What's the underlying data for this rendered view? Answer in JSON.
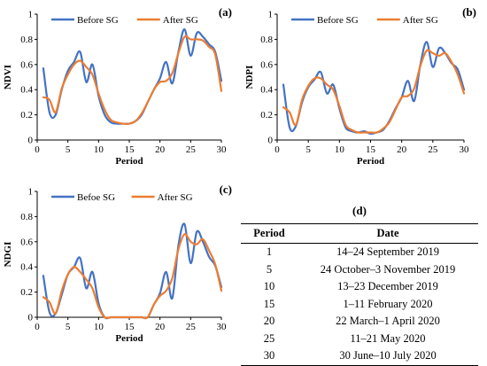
{
  "colors": {
    "before": "#4472C4",
    "after": "#ED7D31"
  },
  "chart_data": [
    {
      "panel": "(a)",
      "type": "line",
      "xlabel": "Period",
      "ylabel": "NDVI",
      "xlim": [
        0,
        30
      ],
      "ylim": [
        0,
        1
      ],
      "xticks": [
        "0",
        "5",
        "10",
        "15",
        "20",
        "25",
        "30"
      ],
      "yticks": [
        "0",
        "0.2",
        "0.4",
        "0.6",
        "0.8",
        "1"
      ],
      "legend_position": "top",
      "x": [
        1,
        2,
        3,
        4,
        5,
        6,
        7,
        8,
        9,
        10,
        11,
        12,
        13,
        14,
        15,
        16,
        17,
        18,
        19,
        20,
        21,
        22,
        23,
        24,
        25,
        26,
        27,
        28,
        29,
        30
      ],
      "series": [
        {
          "name": "Before SG",
          "values": [
            0.57,
            0.22,
            0.2,
            0.4,
            0.55,
            0.62,
            0.7,
            0.46,
            0.6,
            0.35,
            0.2,
            0.14,
            0.13,
            0.13,
            0.13,
            0.15,
            0.2,
            0.3,
            0.4,
            0.49,
            0.62,
            0.45,
            0.7,
            0.88,
            0.67,
            0.85,
            0.82,
            0.76,
            0.7,
            0.47
          ]
        },
        {
          "name": "After SG",
          "values": [
            0.34,
            0.32,
            0.22,
            0.41,
            0.52,
            0.6,
            0.63,
            0.58,
            0.52,
            0.37,
            0.24,
            0.16,
            0.14,
            0.13,
            0.13,
            0.15,
            0.21,
            0.3,
            0.4,
            0.46,
            0.47,
            0.53,
            0.69,
            0.82,
            0.8,
            0.8,
            0.79,
            0.74,
            0.68,
            0.39
          ]
        }
      ]
    },
    {
      "panel": "(b)",
      "type": "line",
      "xlabel": "Period",
      "ylabel": "NDPI",
      "xlim": [
        0,
        30
      ],
      "ylim": [
        0,
        1
      ],
      "xticks": [
        "0",
        "5",
        "10",
        "15",
        "20",
        "25",
        "30"
      ],
      "yticks": [
        "0",
        "0.2",
        "0.4",
        "0.6",
        "0.8",
        "1"
      ],
      "legend_position": "top",
      "x": [
        1,
        2,
        3,
        4,
        5,
        6,
        7,
        8,
        9,
        10,
        11,
        12,
        13,
        14,
        15,
        16,
        17,
        18,
        19,
        20,
        21,
        22,
        23,
        24,
        25,
        26,
        27,
        28,
        29,
        30
      ],
      "series": [
        {
          "name": "Before SG",
          "values": [
            0.44,
            0.1,
            0.11,
            0.3,
            0.42,
            0.48,
            0.54,
            0.37,
            0.44,
            0.25,
            0.1,
            0.07,
            0.06,
            0.07,
            0.05,
            0.06,
            0.08,
            0.15,
            0.25,
            0.34,
            0.47,
            0.31,
            0.6,
            0.78,
            0.58,
            0.73,
            0.69,
            0.61,
            0.56,
            0.4
          ]
        },
        {
          "name": "After SG",
          "values": [
            0.26,
            0.22,
            0.12,
            0.32,
            0.43,
            0.49,
            0.49,
            0.44,
            0.4,
            0.27,
            0.12,
            0.08,
            0.06,
            0.06,
            0.06,
            0.06,
            0.09,
            0.14,
            0.24,
            0.34,
            0.35,
            0.41,
            0.59,
            0.71,
            0.69,
            0.67,
            0.69,
            0.62,
            0.52,
            0.37
          ]
        }
      ]
    },
    {
      "panel": "(c)",
      "type": "line",
      "xlabel": "Period",
      "ylabel": "NDGI",
      "xlim": [
        0,
        30
      ],
      "ylim": [
        0,
        1
      ],
      "xticks": [
        "0",
        "5",
        "10",
        "15",
        "20",
        "25",
        "30"
      ],
      "yticks": [
        "0",
        "0.2",
        "0.4",
        "0.6",
        "0.8",
        "1"
      ],
      "legend_position": "top",
      "x": [
        1,
        2,
        3,
        4,
        5,
        6,
        7,
        8,
        9,
        10,
        11,
        12,
        13,
        14,
        15,
        16,
        17,
        18,
        19,
        20,
        21,
        22,
        23,
        24,
        25,
        26,
        27,
        28,
        29,
        30
      ],
      "series": [
        {
          "name": "Befoe SG",
          "values": [
            0.33,
            0.04,
            0.03,
            0.18,
            0.34,
            0.4,
            0.47,
            0.23,
            0.36,
            0.11,
            0.0,
            0.0,
            0.0,
            0.0,
            0.0,
            0.0,
            0.0,
            0.0,
            0.1,
            0.19,
            0.36,
            0.15,
            0.57,
            0.74,
            0.43,
            0.68,
            0.6,
            0.48,
            0.41,
            0.24
          ]
        },
        {
          "name": "After SG",
          "values": [
            0.16,
            0.12,
            0.03,
            0.21,
            0.34,
            0.4,
            0.36,
            0.3,
            0.23,
            0.08,
            0.0,
            0.0,
            0.0,
            0.0,
            0.0,
            0.0,
            0.0,
            0.0,
            0.1,
            0.17,
            0.21,
            0.31,
            0.54,
            0.66,
            0.6,
            0.58,
            0.62,
            0.53,
            0.42,
            0.21
          ]
        }
      ]
    }
  ],
  "table": {
    "label": "(d)",
    "headers": [
      "Period",
      "Date"
    ],
    "rows": [
      [
        "1",
        "14–24 September 2019"
      ],
      [
        "5",
        "24 October–3 November 2019"
      ],
      [
        "10",
        "13–23 December 2019"
      ],
      [
        "15",
        "1–11 February 2020"
      ],
      [
        "20",
        "22 March–1 April 2020"
      ],
      [
        "25",
        "11–21 May 2020"
      ],
      [
        "30",
        "30 June–10 July 2020"
      ]
    ]
  }
}
